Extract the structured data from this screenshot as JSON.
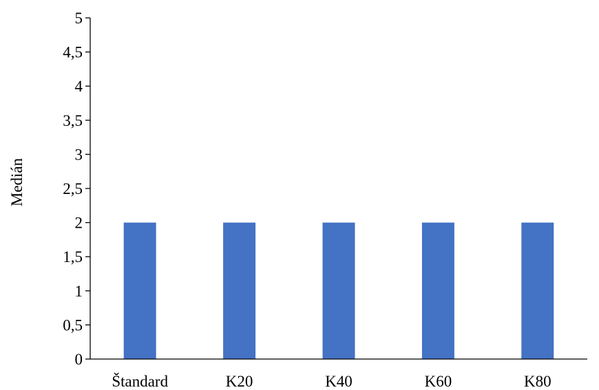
{
  "chart_data": {
    "type": "bar",
    "title": "",
    "xlabel": "",
    "ylabel": "Medián",
    "categories": [
      "Štandard",
      "K20",
      "K40",
      "K60",
      "K80"
    ],
    "series": [
      {
        "values": [
          2,
          2,
          2,
          2,
          2
        ]
      }
    ],
    "ylim": [
      0,
      5
    ],
    "yticks": [
      "0",
      "0,5",
      "1",
      "1,5",
      "2",
      "2,5",
      "3",
      "3,5",
      "4",
      "4,5",
      "5"
    ],
    "grid": false,
    "legend": "none",
    "colors": {
      "bar": "#4472C4",
      "axis": "#000000",
      "text": "#000000"
    }
  }
}
